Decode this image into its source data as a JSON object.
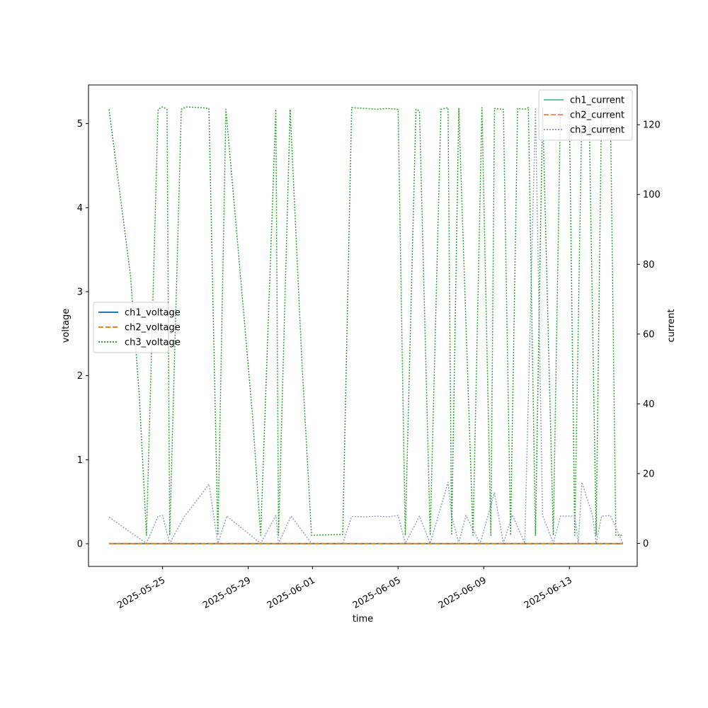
{
  "chart_data": {
    "type": "line",
    "xlabel": "time",
    "ylabel": "voltage",
    "y2label": "current",
    "x_tick_labels": [
      "2025-05-25",
      "2025-05-29",
      "2025-06-01",
      "2025-06-05",
      "2025-06-09",
      "2025-06-13"
    ],
    "x_tick_dates": [
      "2025-05-25",
      "2025-05-29",
      "2025-06-01",
      "2025-06-05",
      "2025-06-09",
      "2025-06-13"
    ],
    "xlim": [
      "2025-05-21T13:00",
      "2025-06-16T04:00"
    ],
    "ylim": [
      -0.27,
      5.46
    ],
    "y_ticks": [
      0,
      1,
      2,
      3,
      4,
      5
    ],
    "y2lim": [
      -6.6,
      131.4
    ],
    "y2_ticks": [
      0,
      20,
      40,
      60,
      80,
      100,
      120
    ],
    "legend_left": {
      "placement": "center-left",
      "entries": [
        "ch1_voltage",
        "ch2_voltage",
        "ch3_voltage"
      ]
    },
    "legend_right": {
      "placement": "top-right",
      "entries": [
        "ch1_current",
        "ch2_current",
        "ch3_current"
      ]
    },
    "grid": false,
    "series": [
      {
        "name": "ch1_voltage",
        "axis": "left",
        "color": "#1f77b4",
        "style": "solid",
        "points": [
          [
            "2025-05-22T12:00",
            0.0
          ],
          [
            "2025-06-15T12:00",
            0.0
          ]
        ]
      },
      {
        "name": "ch2_voltage",
        "axis": "left",
        "color": "#ff7f0e",
        "style": "dashed",
        "points": [
          [
            "2025-05-22T12:00",
            0.0
          ],
          [
            "2025-06-15T12:00",
            0.0
          ]
        ]
      },
      {
        "name": "ch3_voltage",
        "axis": "left",
        "color": "#2ca02c",
        "style": "dotted",
        "points": [
          [
            "2025-05-22T12:00",
            5.17
          ],
          [
            "2025-05-23T12:00",
            3.2
          ],
          [
            "2025-05-23T22:00",
            1.75
          ],
          [
            "2025-05-24T06:00",
            0.1
          ],
          [
            "2025-05-24T19:00",
            5.17
          ],
          [
            "2025-05-25T00:00",
            5.2
          ],
          [
            "2025-05-25T05:00",
            5.17
          ],
          [
            "2025-05-25T08:00",
            0.1
          ],
          [
            "2025-05-25T21:00",
            5.17
          ],
          [
            "2025-05-26T03:00",
            5.2
          ],
          [
            "2025-05-26T18:00",
            5.19
          ],
          [
            "2025-05-27T04:00",
            5.18
          ],
          [
            "2025-05-27T14:00",
            0.1
          ],
          [
            "2025-05-27T23:00",
            5.17
          ],
          [
            "2025-05-28T12:00",
            3.6
          ],
          [
            "2025-05-29T05:00",
            1.5
          ],
          [
            "2025-05-29T14:00",
            0.1
          ],
          [
            "2025-05-30T07:00",
            5.17
          ],
          [
            "2025-05-30T10:00",
            0.1
          ],
          [
            "2025-05-30T23:00",
            5.17
          ],
          [
            "2025-05-31T12:00",
            2.2
          ],
          [
            "2025-05-31T23:00",
            0.1
          ],
          [
            "2025-06-02T10:00",
            0.11
          ],
          [
            "2025-06-02T20:00",
            5.19
          ],
          [
            "2025-06-03T12:00",
            5.18
          ],
          [
            "2025-06-04T00:00",
            5.17
          ],
          [
            "2025-06-04T12:00",
            5.18
          ],
          [
            "2025-06-05T00:00",
            5.17
          ],
          [
            "2025-06-05T08:00",
            0.1
          ],
          [
            "2025-06-05T20:00",
            5.17
          ],
          [
            "2025-06-06T00:00",
            5.15
          ],
          [
            "2025-06-06T12:00",
            0.1
          ],
          [
            "2025-06-07T00:00",
            5.17
          ],
          [
            "2025-06-07T08:00",
            5.19
          ],
          [
            "2025-06-07T12:00",
            0.1
          ],
          [
            "2025-06-07T20:00",
            5.18
          ],
          [
            "2025-06-08T12:00",
            0.1
          ],
          [
            "2025-06-08T22:00",
            5.19
          ],
          [
            "2025-06-09T08:00",
            0.1
          ],
          [
            "2025-06-09T12:00",
            5.18
          ],
          [
            "2025-06-09T22:00",
            5.17
          ],
          [
            "2025-06-10T06:00",
            0.1
          ],
          [
            "2025-06-10T14:00",
            5.18
          ],
          [
            "2025-06-10T22:00",
            5.17
          ],
          [
            "2025-06-11T02:00",
            5.19
          ],
          [
            "2025-06-11T10:00",
            0.1
          ],
          [
            "2025-06-11T18:00",
            5.19
          ],
          [
            "2025-06-12T06:00",
            0.1
          ],
          [
            "2025-06-12T14:00",
            5.19
          ],
          [
            "2025-06-13T00:00",
            5.17
          ],
          [
            "2025-06-13T06:00",
            0.1
          ],
          [
            "2025-06-13T14:00",
            5.18
          ],
          [
            "2025-06-13T22:00",
            5.17
          ],
          [
            "2025-06-14T06:00",
            0.1
          ],
          [
            "2025-06-14T12:00",
            5.18
          ],
          [
            "2025-06-14T22:00",
            5.17
          ],
          [
            "2025-06-15T04:00",
            0.1
          ],
          [
            "2025-06-15T12:00",
            0.1
          ]
        ]
      },
      {
        "name": "ch1_current",
        "axis": "right",
        "color": "#66c2a5",
        "style": "solid",
        "points": [
          [
            "2025-05-22T12:00",
            0.0
          ],
          [
            "2025-06-15T12:00",
            0.0
          ]
        ]
      },
      {
        "name": "ch2_current",
        "axis": "right",
        "color": "#fc8d62",
        "style": "dashed",
        "points": [
          [
            "2025-05-22T12:00",
            0.0
          ],
          [
            "2025-06-15T12:00",
            0.0
          ]
        ]
      },
      {
        "name": "ch3_current",
        "axis": "right",
        "color": "#8da0cb",
        "style": "dotted",
        "points": [
          [
            "2025-05-22T12:00",
            7.5
          ],
          [
            "2025-05-24T06:00",
            0.0
          ],
          [
            "2025-05-24T19:00",
            7.8
          ],
          [
            "2025-05-25T00:00",
            8.0
          ],
          [
            "2025-05-25T08:00",
            0.0
          ],
          [
            "2025-05-26T00:00",
            7.5
          ],
          [
            "2025-05-26T18:00",
            13.5
          ],
          [
            "2025-05-27T04:00",
            17.0
          ],
          [
            "2025-05-27T14:00",
            0.0
          ],
          [
            "2025-05-28T00:00",
            7.8
          ],
          [
            "2025-05-29T14:00",
            0.0
          ],
          [
            "2025-05-30T07:00",
            8.0
          ],
          [
            "2025-05-30T10:00",
            0.0
          ],
          [
            "2025-05-31T00:00",
            7.8
          ],
          [
            "2025-05-31T23:00",
            0.0
          ],
          [
            "2025-06-02T10:00",
            0.0
          ],
          [
            "2025-06-02T20:00",
            7.7
          ],
          [
            "2025-06-03T12:00",
            7.6
          ],
          [
            "2025-06-04T00:00",
            7.8
          ],
          [
            "2025-06-04T12:00",
            7.6
          ],
          [
            "2025-06-05T00:00",
            8.0
          ],
          [
            "2025-06-05T08:00",
            0.0
          ],
          [
            "2025-06-06T00:00",
            7.8
          ],
          [
            "2025-06-06T12:00",
            0.0
          ],
          [
            "2025-06-07T08:00",
            17.5
          ],
          [
            "2025-06-07T12:00",
            8.0
          ],
          [
            "2025-06-07T20:00",
            0.0
          ],
          [
            "2025-06-08T04:00",
            8.0
          ],
          [
            "2025-06-08T20:00",
            0.0
          ],
          [
            "2025-06-09T12:00",
            14.5
          ],
          [
            "2025-06-09T22:00",
            0.0
          ],
          [
            "2025-06-10T08:00",
            8.2
          ],
          [
            "2025-06-10T22:00",
            0.0
          ],
          [
            "2025-06-11T10:00",
            124.5
          ],
          [
            "2025-06-11T18:00",
            8.0
          ],
          [
            "2025-06-12T06:00",
            0.0
          ],
          [
            "2025-06-12T14:00",
            7.8
          ],
          [
            "2025-06-13T06:00",
            7.8
          ],
          [
            "2025-06-13T10:00",
            0.0
          ],
          [
            "2025-06-13T14:00",
            17.5
          ],
          [
            "2025-06-14T02:00",
            8.0
          ],
          [
            "2025-06-14T06:00",
            0.0
          ],
          [
            "2025-06-14T12:00",
            7.8
          ],
          [
            "2025-06-14T22:00",
            8.0
          ],
          [
            "2025-06-15T12:00",
            0.0
          ]
        ]
      }
    ]
  }
}
